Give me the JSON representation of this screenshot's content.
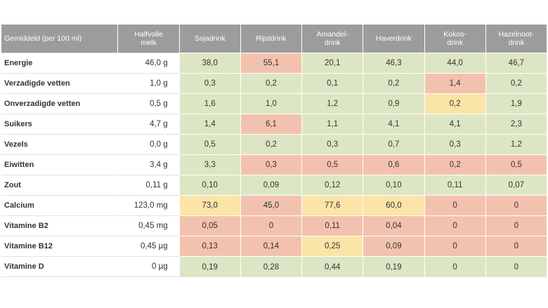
{
  "colors": {
    "header_bg": "#9c9c9c",
    "good": "#dde6c4",
    "bad": "#f3c2ae",
    "medium": "#fbe4a8"
  },
  "columns": [
    {
      "line1": "Gemiddeld (per 100 ml)",
      "line2": ""
    },
    {
      "line1": "Halfvolle",
      "line2": "melk"
    },
    {
      "line1": "Sojadrink",
      "line2": ""
    },
    {
      "line1": "Rijstdrink",
      "line2": ""
    },
    {
      "line1": "Amandel-",
      "line2": "drink"
    },
    {
      "line1": "Haverdrink",
      "line2": ""
    },
    {
      "line1": "Kokos-",
      "line2": "drink"
    },
    {
      "line1": "Hazelnoot-",
      "line2": "drink"
    }
  ],
  "rows": [
    {
      "label": "Energie",
      "milk": "46,0 g",
      "values": [
        "38,0",
        "55,1",
        "20,1",
        "46,3",
        "44,0",
        "46,7"
      ],
      "rating": [
        "g",
        "r",
        "g",
        "g",
        "g",
        "g"
      ]
    },
    {
      "label": "Verzadigde vetten",
      "milk": "1,0 g",
      "values": [
        "0,3",
        "0,2",
        "0,1",
        "0,2",
        "1,4",
        "0,2"
      ],
      "rating": [
        "g",
        "g",
        "g",
        "g",
        "r",
        "g"
      ]
    },
    {
      "label": "Onverzadigde vetten",
      "milk": "0,5 g",
      "values": [
        "1,6",
        "1,0",
        "1,2",
        "0,9",
        "0,2",
        "1,9"
      ],
      "rating": [
        "g",
        "g",
        "g",
        "g",
        "y",
        "g"
      ]
    },
    {
      "label": "Suikers",
      "milk": "4,7 g",
      "values": [
        "1,4",
        "6,1",
        "1,1",
        "4,1",
        "4,1",
        "2,3"
      ],
      "rating": [
        "g",
        "r",
        "g",
        "g",
        "g",
        "g"
      ]
    },
    {
      "label": "Vezels",
      "milk": "0,0 g",
      "values": [
        "0,5",
        "0,2",
        "0,3",
        "0,7",
        "0,3",
        "1,2"
      ],
      "rating": [
        "g",
        "g",
        "g",
        "g",
        "g",
        "g"
      ]
    },
    {
      "label": "Eiwitten",
      "milk": "3,4 g",
      "values": [
        "3,3",
        "0,3",
        "0,5",
        "0,6",
        "0,2",
        "0,5"
      ],
      "rating": [
        "g",
        "r",
        "r",
        "r",
        "r",
        "r"
      ]
    },
    {
      "label": "Zout",
      "milk": "0,11 g",
      "values": [
        "0,10",
        "0,09",
        "0,12",
        "0,10",
        "0,11",
        "0,07"
      ],
      "rating": [
        "g",
        "g",
        "g",
        "g",
        "g",
        "g"
      ]
    },
    {
      "label": "Calcium",
      "milk": "123,0 mg",
      "values": [
        "73,0",
        "45,0",
        "77,6",
        "60,0",
        "0",
        "0"
      ],
      "rating": [
        "y",
        "r",
        "y",
        "y",
        "r",
        "r"
      ]
    },
    {
      "label": "Vitamine B2",
      "milk": "0,45 mg",
      "values": [
        "0,05",
        "0",
        "0,11",
        "0,04",
        "0",
        "0"
      ],
      "rating": [
        "r",
        "r",
        "r",
        "r",
        "r",
        "r"
      ]
    },
    {
      "label": "Vitamine B12",
      "milk": "0,45 µg",
      "values": [
        "0,13",
        "0,14",
        "0,25",
        "0,09",
        "0",
        "0"
      ],
      "rating": [
        "r",
        "r",
        "y",
        "r",
        "r",
        "r"
      ]
    },
    {
      "label": "Vitamine D",
      "milk": "0 µg",
      "values": [
        "0,19",
        "0,28",
        "0,44",
        "0,19",
        "0",
        "0"
      ],
      "rating": [
        "g",
        "g",
        "g",
        "g",
        "g",
        "g"
      ]
    }
  ]
}
